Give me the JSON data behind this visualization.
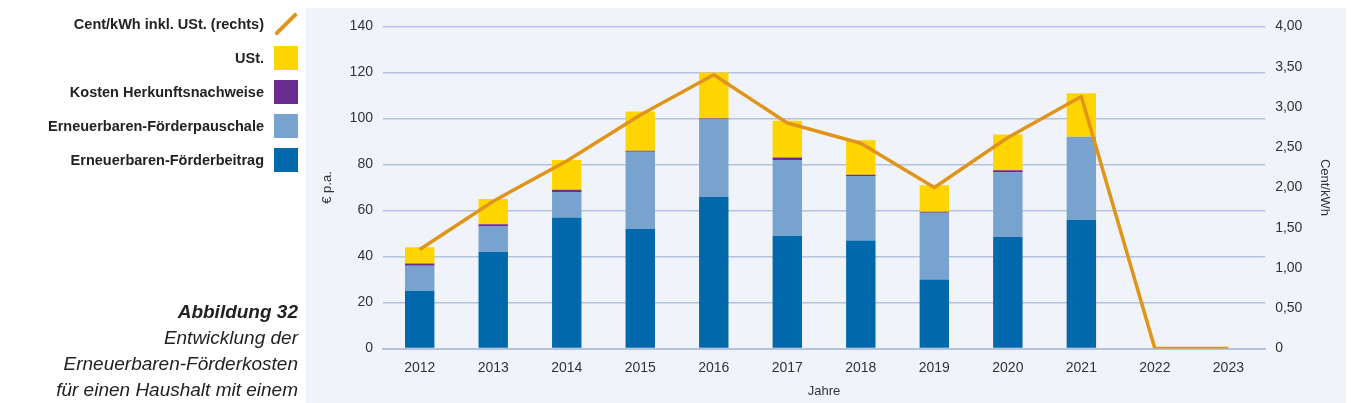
{
  "chart_data": {
    "type": "bar",
    "title": "Abbildung 32",
    "subtitle": "Entwicklung der Erneuerbaren-Förderkosten für einen Haushalt mit einem",
    "xlabel": "Jahre",
    "ylabel": "€ p.a.",
    "y2label": "Cent/kWh",
    "categories": [
      "2012",
      "2013",
      "2014",
      "2015",
      "2016",
      "2017",
      "2018",
      "2019",
      "2020",
      "2021",
      "2022",
      "2023"
    ],
    "stacked": true,
    "series": [
      {
        "name": "Erneuerbaren-Förderbeitrag",
        "color": "#0068ab",
        "values": [
          25,
          42,
          57,
          52,
          66,
          49,
          47,
          30,
          48.5,
          56,
          0,
          0
        ]
      },
      {
        "name": "Erneuerbaren-Förderpauschale",
        "color": "#78a3cf",
        "values": [
          11,
          11,
          11,
          33.5,
          33.5,
          33,
          28,
          29,
          28,
          36,
          0,
          0
        ]
      },
      {
        "name": "Kosten Herkunftsnachweise",
        "color": "#6a2c91",
        "values": [
          1,
          1,
          1,
          0.5,
          0.5,
          1,
          0.5,
          0.5,
          1,
          0,
          0,
          0
        ]
      },
      {
        "name": "USt.",
        "color": "#ffd500",
        "values": [
          7,
          11,
          13,
          17,
          20,
          16,
          15,
          11.5,
          15.5,
          19,
          0,
          0
        ]
      },
      {
        "name": "Cent/kWh inkl. USt. (rechts)",
        "type": "line",
        "axis": "y2",
        "color": "#e0941a",
        "values": [
          1.23,
          1.83,
          2.33,
          2.9,
          3.4,
          2.8,
          2.55,
          2.0,
          2.62,
          3.13,
          0,
          0
        ]
      }
    ],
    "ylim": [
      0,
      140
    ],
    "yticks": [
      0,
      20,
      40,
      60,
      80,
      100,
      120,
      140
    ],
    "y2lim": [
      0,
      4
    ],
    "y2ticks": [
      0,
      {
        "value": 0.5,
        "label": "0,50"
      },
      {
        "value": 1,
        "label": "1,00"
      },
      {
        "value": 1.5,
        "label": "1,50"
      },
      {
        "value": 2,
        "label": "2,00"
      },
      {
        "value": 2.5,
        "label": "2,50"
      },
      {
        "value": 3,
        "label": "3,00"
      },
      {
        "value": 3.5,
        "label": "3,50"
      },
      {
        "value": 4,
        "label": "4,00"
      }
    ],
    "grid": "y",
    "legend": "left",
    "marker": "none",
    "line_style": "solid"
  }
}
